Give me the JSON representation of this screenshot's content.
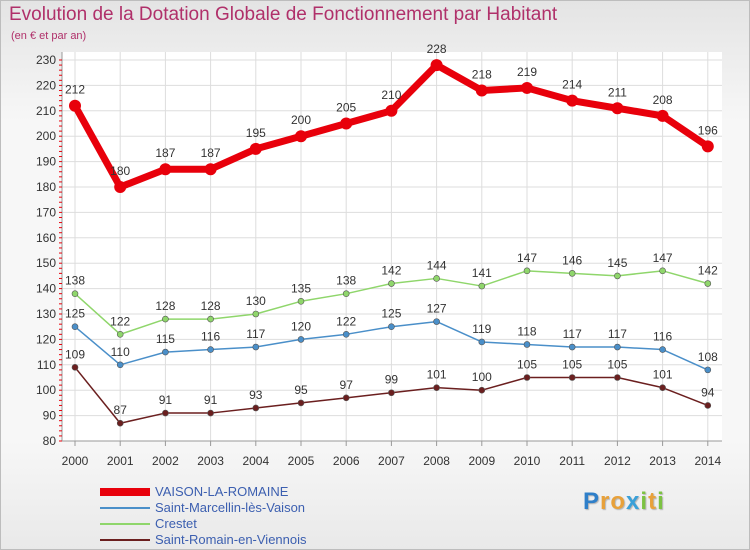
{
  "chart_data": {
    "type": "line",
    "title": "Evolution de la Dotation Globale de Fonctionnement par Habitant",
    "subtitle": "(en € et par an)",
    "xlabel": "",
    "ylabel": "",
    "ylim": [
      80,
      230
    ],
    "yticks": [
      80,
      90,
      100,
      110,
      120,
      130,
      140,
      150,
      160,
      170,
      180,
      190,
      200,
      210,
      220,
      230
    ],
    "categories": [
      "2000",
      "2001",
      "2002",
      "2003",
      "2004",
      "2005",
      "2006",
      "2007",
      "2008",
      "2009",
      "2010",
      "2011",
      "2012",
      "2013",
      "2014"
    ],
    "grid": true,
    "legend_position": "bottom-left",
    "series": [
      {
        "name": "VAISON-LA-ROMAINE",
        "color": "#e8000b",
        "values": [
          212,
          180,
          187,
          187,
          195,
          200,
          205,
          210,
          228,
          218,
          219,
          214,
          211,
          208,
          196
        ]
      },
      {
        "name": "Saint-Marcellin-lès-Vaison",
        "color": "#4a8fc9",
        "values": [
          125,
          110,
          115,
          116,
          117,
          120,
          122,
          125,
          127,
          119,
          118,
          117,
          117,
          116,
          108
        ]
      },
      {
        "name": "Crestet",
        "color": "#8fd66b",
        "values": [
          138,
          122,
          128,
          128,
          130,
          135,
          138,
          142,
          144,
          141,
          147,
          146,
          145,
          147,
          142
        ]
      },
      {
        "name": "Saint-Romain-en-Viennois",
        "color": "#6b1f1f",
        "values": [
          109,
          87,
          91,
          91,
          93,
          95,
          97,
          99,
          101,
          100,
          105,
          105,
          105,
          101,
          94
        ]
      }
    ]
  },
  "logo": {
    "letters": [
      "P",
      "r",
      "o",
      "x",
      "i",
      "t",
      "i"
    ],
    "colors": [
      "#2f7fc9",
      "#e8a13a",
      "#e8a13a",
      "#3aa0d8",
      "#7cc242",
      "#e8a13a",
      "#7cc242"
    ]
  }
}
